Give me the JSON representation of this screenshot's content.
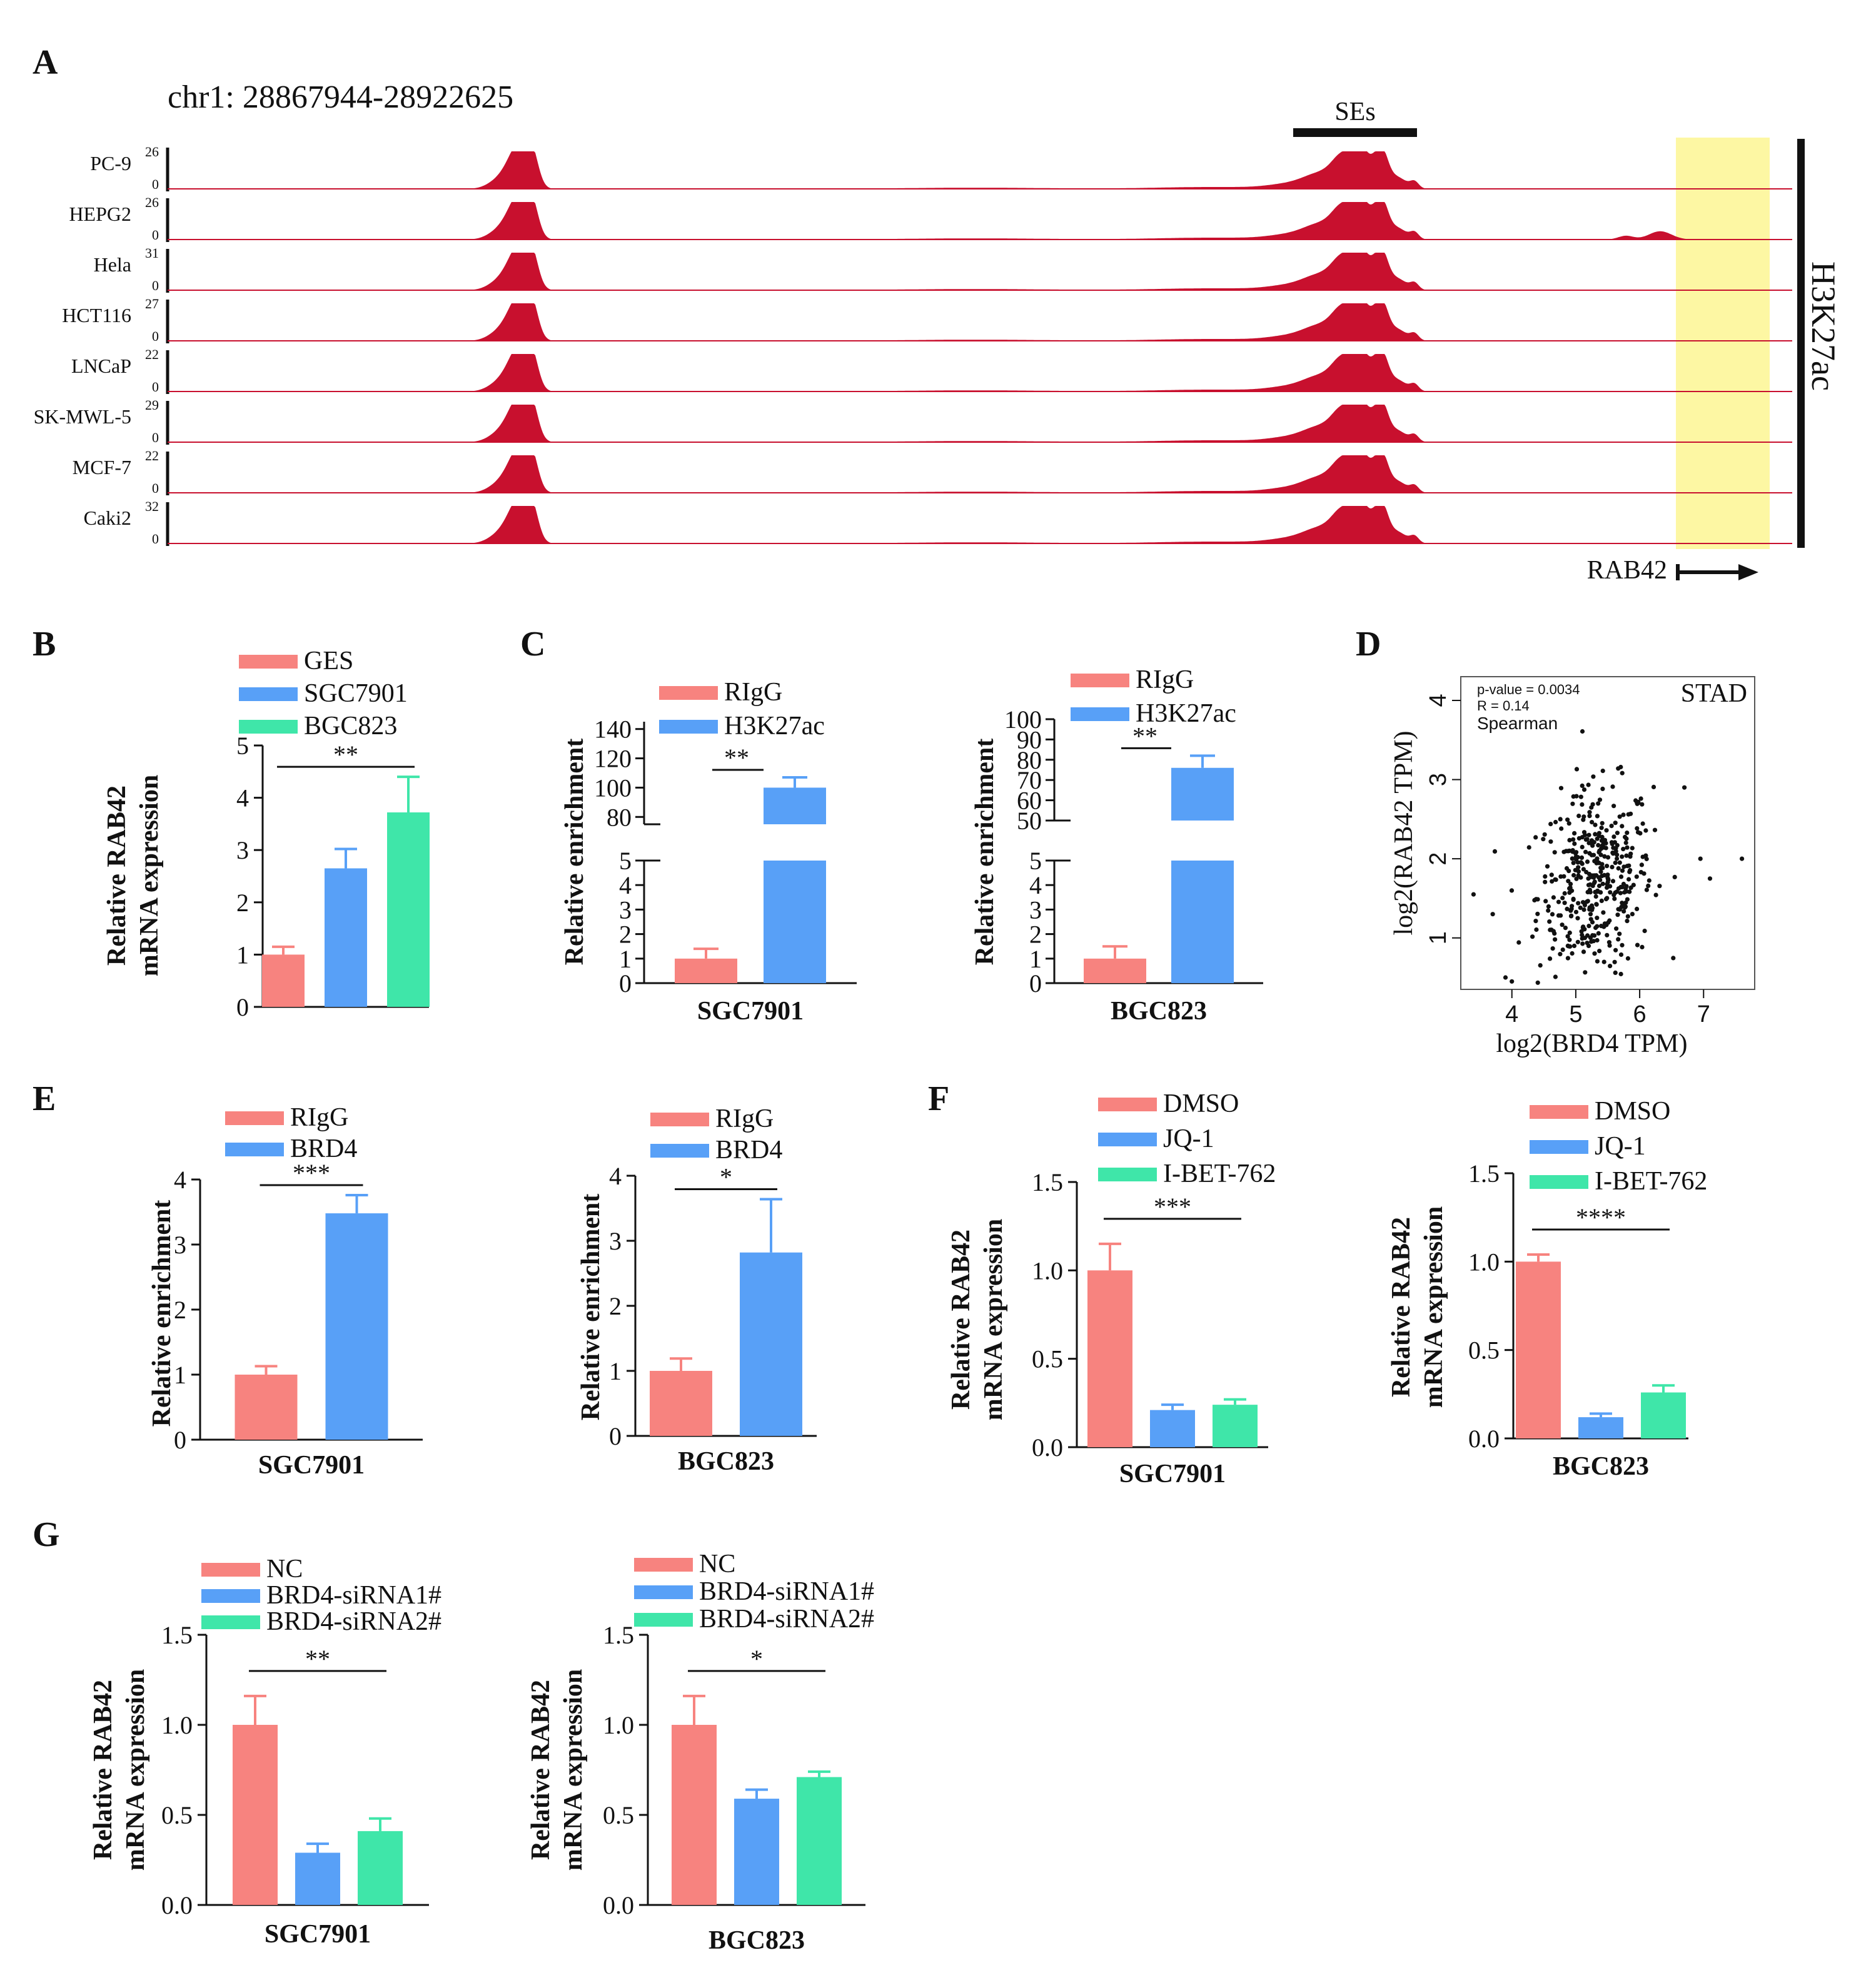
{
  "colors": {
    "red": "#f7837f",
    "blue": "#58a0f7",
    "green": "#3fe6a9",
    "track": "#c8102e",
    "highlight": "#fdf7a3"
  },
  "chart_data": [
    {
      "panel": "A",
      "type": "track",
      "region": "chr1: 28867944-28922625",
      "se_label": "SEs",
      "mark_label": "H3K27ac",
      "gene_label": "RAB42",
      "tracks": [
        {
          "name": "PC-9",
          "max": "26",
          "min": "0"
        },
        {
          "name": "HEPG2",
          "max": "26",
          "min": "0"
        },
        {
          "name": "Hela",
          "max": "31",
          "min": "0"
        },
        {
          "name": "HCT116",
          "max": "27",
          "min": "0"
        },
        {
          "name": "LNCaP",
          "max": "22",
          "min": "0"
        },
        {
          "name": "SK-MWL-5",
          "max": "29",
          "min": "0"
        },
        {
          "name": "MCF-7",
          "max": "22",
          "min": "0"
        },
        {
          "name": "Caki2",
          "max": "32",
          "min": "0"
        }
      ]
    },
    {
      "panel": "B",
      "type": "bar",
      "ylabel": [
        "Relative RAB42",
        "mRNA expression"
      ],
      "ylim": [
        0,
        5
      ],
      "yticks": [
        "0",
        "1",
        "2",
        "3",
        "4",
        "5"
      ],
      "legend": [
        "GES",
        "SGC7901",
        "BGC823"
      ],
      "values": [
        1.0,
        2.65,
        3.72
      ],
      "errors": [
        0.15,
        0.37,
        0.68
      ],
      "colors": [
        "red",
        "blue",
        "green"
      ],
      "sig": "**",
      "xlabel": ""
    },
    {
      "panel": "C",
      "type": "bar",
      "broken_axis": true,
      "ylabel": [
        "Relative enrichment"
      ],
      "xlabel": "SGC7901",
      "legend": [
        "RIgG",
        "H3K27ac"
      ],
      "values": [
        1.0,
        100
      ],
      "errors": [
        0.4,
        7
      ],
      "upper_range": [
        75,
        145
      ],
      "upper_ticks": [
        "80",
        "100",
        "120",
        "140"
      ],
      "lower_ticks": [
        "0",
        "1",
        "2",
        "3",
        "4",
        "5"
      ],
      "colors": [
        "red",
        "blue"
      ],
      "sig": "**"
    },
    {
      "panel": "C2",
      "type": "bar",
      "broken_axis": true,
      "ylabel": [
        "Relative enrichment"
      ],
      "xlabel": "BGC823",
      "legend": [
        "RIgG",
        "H3K27ac"
      ],
      "values": [
        1.0,
        76
      ],
      "errors": [
        0.5,
        6
      ],
      "upper_range": [
        50,
        100
      ],
      "upper_ticks": [
        "50",
        "60",
        "70",
        "80",
        "90",
        "100"
      ],
      "lower_ticks": [
        "0",
        "1",
        "2",
        "3",
        "4",
        "5"
      ],
      "colors": [
        "red",
        "blue"
      ],
      "sig": "**"
    },
    {
      "panel": "D",
      "type": "scatter",
      "title": "STAD",
      "stats": [
        "p-value = 0.0034",
        "R = 0.14",
        "Spearman"
      ],
      "xlabel": "log2(BRD4 TPM)",
      "ylabel": "log2(RAB42 TPM)",
      "xlim": [
        3.2,
        7.8
      ],
      "ylim": [
        0.35,
        4.3
      ],
      "xticks": [
        "4",
        "5",
        "6",
        "7"
      ],
      "yticks": [
        "1",
        "2",
        "3",
        "4"
      ],
      "x_mean": 5.3,
      "x_sd": 0.45,
      "y_mean": 1.7,
      "y_sd": 0.6,
      "n_points": 420
    },
    {
      "panel": "E",
      "type": "bar",
      "ylabel": [
        "Relative enrichment"
      ],
      "xlabel": "SGC7901",
      "legend": [
        "RIgG",
        "BRD4"
      ],
      "ylim": [
        0,
        4
      ],
      "yticks": [
        "0",
        "1",
        "2",
        "3",
        "4"
      ],
      "values": [
        1.0,
        3.48
      ],
      "errors": [
        0.13,
        0.28
      ],
      "colors": [
        "red",
        "blue"
      ],
      "sig": "***"
    },
    {
      "panel": "E2",
      "type": "bar",
      "ylabel": [
        "Relative enrichment"
      ],
      "xlabel": "BGC823",
      "legend": [
        "RIgG",
        "BRD4"
      ],
      "ylim": [
        0,
        4
      ],
      "yticks": [
        "0",
        "1",
        "2",
        "3",
        "4"
      ],
      "values": [
        1.0,
        2.82
      ],
      "errors": [
        0.19,
        0.82
      ],
      "colors": [
        "red",
        "blue"
      ],
      "sig": "*"
    },
    {
      "panel": "F",
      "type": "bar",
      "ylabel": [
        "Relative RAB42",
        "mRNA expression"
      ],
      "xlabel": "SGC7901",
      "legend": [
        "DMSO",
        "JQ-1",
        "I-BET-762"
      ],
      "ylim": [
        0,
        1.5
      ],
      "yticks": [
        "0.0",
        "0.5",
        "1.0",
        "1.5"
      ],
      "values": [
        1.0,
        0.21,
        0.24
      ],
      "errors": [
        0.15,
        0.03,
        0.03
      ],
      "colors": [
        "red",
        "blue",
        "green"
      ],
      "sig": "***"
    },
    {
      "panel": "F2",
      "type": "bar",
      "ylabel": [
        "Relative RAB42",
        "mRNA expression"
      ],
      "xlabel": "BGC823",
      "legend": [
        "DMSO",
        "JQ-1",
        "I-BET-762"
      ],
      "ylim": [
        0,
        1.5
      ],
      "yticks": [
        "0.0",
        "0.5",
        "1.0",
        "1.5"
      ],
      "values": [
        1.0,
        0.12,
        0.26
      ],
      "errors": [
        0.04,
        0.02,
        0.04
      ],
      "colors": [
        "red",
        "blue",
        "green"
      ],
      "sig": "****"
    },
    {
      "panel": "G",
      "type": "bar",
      "ylabel": [
        "Relative RAB42",
        "mRNA expression"
      ],
      "xlabel": "SGC7901",
      "legend": [
        "NC",
        "BRD4-siRNA1#",
        "BRD4-siRNA2#"
      ],
      "ylim": [
        0,
        1.5
      ],
      "yticks": [
        "0.0",
        "0.5",
        "1.0",
        "1.5"
      ],
      "values": [
        1.0,
        0.29,
        0.41
      ],
      "errors": [
        0.16,
        0.05,
        0.07
      ],
      "colors": [
        "red",
        "blue",
        "green"
      ],
      "sig": "**"
    },
    {
      "panel": "G2",
      "type": "bar",
      "ylabel": [
        "Relative RAB42",
        "mRNA expression"
      ],
      "xlabel": "BGC823",
      "legend": [
        "NC",
        "BRD4-siRNA1#",
        "BRD4-siRNA2#"
      ],
      "ylim": [
        0,
        1.5
      ],
      "yticks": [
        "0.0",
        "0.5",
        "1.0",
        "1.5"
      ],
      "values": [
        1.0,
        0.59,
        0.71
      ],
      "errors": [
        0.16,
        0.05,
        0.03
      ],
      "colors": [
        "red",
        "blue",
        "green"
      ],
      "sig": "*"
    }
  ],
  "panel_letters": {
    "A": "A",
    "B": "B",
    "C": "C",
    "D": "D",
    "E": "E",
    "F": "F",
    "G": "G"
  }
}
